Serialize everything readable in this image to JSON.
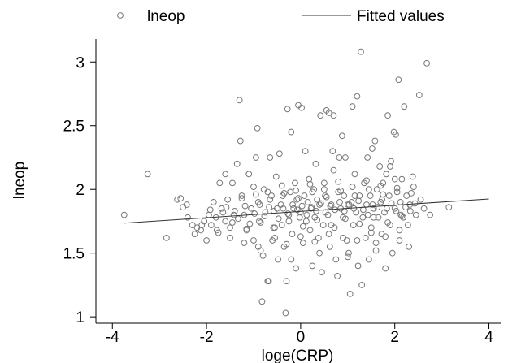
{
  "chart_data": {
    "type": "scatter",
    "xlabel": "loge(CRP)",
    "ylabel": "lneop",
    "xlim": [
      -4.35,
      4.25
    ],
    "ylim": [
      0.95,
      3.18
    ],
    "xticks": [
      -4,
      -2,
      0,
      2,
      4
    ],
    "xtick_labels": [
      "-4",
      "-2",
      "0",
      "2",
      "4"
    ],
    "yticks": [
      1,
      1.5,
      2,
      2.5,
      3
    ],
    "ytick_labels": [
      "1",
      "1.5",
      "2",
      "2.5",
      "3"
    ],
    "grid": false,
    "legend_position": "top",
    "legend": [
      "lneop",
      "Fitted values"
    ],
    "series": [
      {
        "name": "lneop",
        "kind": "scatter",
        "marker": "hollow-circle",
        "color": "#777777",
        "points": [
          [
            -3.75,
            1.8
          ],
          [
            -3.25,
            2.12
          ],
          [
            -2.85,
            1.62
          ],
          [
            -2.55,
            1.93
          ],
          [
            -2.5,
            1.86
          ],
          [
            -2.42,
            1.88
          ],
          [
            -2.4,
            1.78
          ],
          [
            -2.3,
            1.72
          ],
          [
            -2.25,
            1.65
          ],
          [
            -2.12,
            1.68
          ],
          [
            -2.05,
            1.75
          ],
          [
            -2.0,
            1.6
          ],
          [
            -1.95,
            1.8
          ],
          [
            -1.9,
            1.72
          ],
          [
            -1.85,
            1.9
          ],
          [
            -1.78,
            1.68
          ],
          [
            -1.72,
            2.05
          ],
          [
            -1.68,
            1.85
          ],
          [
            -1.6,
            1.75
          ],
          [
            -1.55,
            1.92
          ],
          [
            -1.5,
            1.7
          ],
          [
            -1.45,
            2.05
          ],
          [
            -1.42,
            1.8
          ],
          [
            -1.35,
            2.2
          ],
          [
            -1.3,
            2.7
          ],
          [
            -1.28,
            2.38
          ],
          [
            -1.25,
            1.95
          ],
          [
            -1.2,
            1.8
          ],
          [
            -1.15,
            1.68
          ],
          [
            -1.1,
            2.12
          ],
          [
            -1.05,
            1.85
          ],
          [
            -1.0,
            1.6
          ],
          [
            -0.95,
            2.25
          ],
          [
            -0.92,
            2.48
          ],
          [
            -0.9,
            1.9
          ],
          [
            -0.88,
            1.75
          ],
          [
            -0.85,
            1.52
          ],
          [
            -0.82,
            1.12
          ],
          [
            -0.78,
            2.0
          ],
          [
            -0.75,
            1.82
          ],
          [
            -0.7,
            1.28
          ],
          [
            -0.68,
            1.28
          ],
          [
            -0.65,
            2.25
          ],
          [
            -0.62,
            1.95
          ],
          [
            -0.58,
            1.7
          ],
          [
            -0.55,
            1.62
          ],
          [
            -0.52,
            2.1
          ],
          [
            -0.5,
            1.85
          ],
          [
            -0.48,
            1.45
          ],
          [
            -0.45,
            2.28
          ],
          [
            -0.42,
            1.88
          ],
          [
            -0.4,
            1.72
          ],
          [
            -0.38,
            1.95
          ],
          [
            -0.35,
            1.55
          ],
          [
            -0.32,
            1.03
          ],
          [
            -0.3,
            1.28
          ],
          [
            -0.28,
            2.63
          ],
          [
            -0.25,
            1.8
          ],
          [
            -0.22,
            1.98
          ],
          [
            -0.2,
            2.45
          ],
          [
            -0.18,
            1.65
          ],
          [
            -0.15,
            1.85
          ],
          [
            -0.12,
            2.05
          ],
          [
            -0.1,
            1.38
          ],
          [
            -0.08,
            1.92
          ],
          [
            -0.05,
            2.66
          ],
          [
            -0.02,
            1.78
          ],
          [
            0.0,
            1.82
          ],
          [
            0.02,
            2.64
          ],
          [
            0.05,
            1.58
          ],
          [
            0.08,
            1.95
          ],
          [
            0.1,
            2.3
          ],
          [
            0.12,
            1.75
          ],
          [
            0.15,
            1.9
          ],
          [
            0.18,
            2.08
          ],
          [
            0.2,
            1.68
          ],
          [
            0.22,
            1.85
          ],
          [
            0.25,
            1.4
          ],
          [
            0.28,
            2.0
          ],
          [
            0.3,
            1.78
          ],
          [
            0.32,
            2.2
          ],
          [
            0.35,
            1.92
          ],
          [
            0.38,
            1.62
          ],
          [
            0.4,
            1.88
          ],
          [
            0.42,
            2.58
          ],
          [
            0.45,
            1.35
          ],
          [
            0.48,
            1.72
          ],
          [
            0.5,
            2.05
          ],
          [
            0.52,
            1.95
          ],
          [
            0.55,
            2.62
          ],
          [
            0.58,
            1.8
          ],
          [
            0.6,
            2.6
          ],
          [
            0.62,
            1.55
          ],
          [
            0.65,
            1.88
          ],
          [
            0.68,
            2.3
          ],
          [
            0.7,
            2.58
          ],
          [
            0.72,
            1.7
          ],
          [
            0.75,
            1.45
          ],
          [
            0.78,
            1.32
          ],
          [
            0.8,
            1.98
          ],
          [
            0.82,
            2.25
          ],
          [
            0.85,
            1.85
          ],
          [
            0.88,
            2.42
          ],
          [
            0.9,
            1.78
          ],
          [
            0.92,
            1.95
          ],
          [
            0.95,
            2.25
          ],
          [
            0.98,
            1.6
          ],
          [
            1.0,
            1.88
          ],
          [
            1.02,
            1.5
          ],
          [
            1.05,
            1.18
          ],
          [
            1.08,
            1.9
          ],
          [
            1.1,
            2.65
          ],
          [
            1.12,
            1.72
          ],
          [
            1.15,
            2.12
          ],
          [
            1.18,
            1.82
          ],
          [
            1.2,
            2.73
          ],
          [
            1.22,
            1.4
          ],
          [
            1.25,
            1.95
          ],
          [
            1.28,
            3.08
          ],
          [
            1.3,
            1.25
          ],
          [
            1.32,
            1.78
          ],
          [
            1.35,
            2.05
          ],
          [
            1.38,
            1.62
          ],
          [
            1.4,
            1.88
          ],
          [
            1.42,
            2.25
          ],
          [
            1.45,
            1.45
          ],
          [
            1.48,
            1.95
          ],
          [
            1.5,
            1.7
          ],
          [
            1.52,
            2.32
          ],
          [
            1.55,
            1.85
          ],
          [
            1.58,
            2.38
          ],
          [
            1.6,
            1.58
          ],
          [
            1.62,
            2.0
          ],
          [
            1.65,
            1.78
          ],
          [
            1.68,
            2.18
          ],
          [
            1.7,
            1.9
          ],
          [
            1.72,
            1.65
          ],
          [
            1.75,
            2.05
          ],
          [
            1.78,
            1.82
          ],
          [
            1.8,
            1.38
          ],
          [
            1.82,
            2.12
          ],
          [
            1.85,
            2.58
          ],
          [
            1.88,
            1.95
          ],
          [
            1.9,
            1.72
          ],
          [
            1.92,
            2.22
          ],
          [
            1.95,
            1.5
          ],
          [
            1.98,
            2.45
          ],
          [
            2.0,
            1.85
          ],
          [
            2.02,
            2.43
          ],
          [
            2.05,
            1.98
          ],
          [
            2.08,
            2.86
          ],
          [
            2.1,
            1.68
          ],
          [
            2.12,
            1.9
          ],
          [
            2.15,
            2.08
          ],
          [
            2.18,
            1.78
          ],
          [
            2.2,
            2.65
          ],
          [
            2.25,
            1.95
          ],
          [
            2.28,
            1.72
          ],
          [
            2.32,
            1.88
          ],
          [
            2.38,
            2.1
          ],
          [
            2.45,
            1.8
          ],
          [
            2.52,
            2.74
          ],
          [
            2.55,
            1.92
          ],
          [
            2.62,
            1.85
          ],
          [
            2.68,
            2.99
          ],
          [
            2.75,
            1.8
          ],
          [
            3.15,
            1.86
          ],
          [
            -2.62,
            1.92
          ],
          [
            -2.2,
            1.7
          ],
          [
            -1.92,
            1.84
          ],
          [
            -1.8,
            1.78
          ],
          [
            -1.65,
            1.82
          ],
          [
            -1.58,
            1.86
          ],
          [
            -1.4,
            1.83
          ],
          [
            -1.33,
            1.77
          ],
          [
            -1.18,
            1.87
          ],
          [
            -1.08,
            1.73
          ],
          [
            -0.98,
            1.81
          ],
          [
            -0.87,
            1.88
          ],
          [
            -0.77,
            1.79
          ],
          [
            -0.67,
            1.86
          ],
          [
            -0.57,
            1.83
          ],
          [
            -0.47,
            1.77
          ],
          [
            -0.37,
            1.85
          ],
          [
            -0.27,
            1.81
          ],
          [
            -0.17,
            1.88
          ],
          [
            -0.07,
            1.84
          ],
          [
            0.03,
            1.87
          ],
          [
            0.13,
            1.8
          ],
          [
            0.23,
            1.86
          ],
          [
            0.33,
            1.83
          ],
          [
            0.43,
            1.89
          ],
          [
            0.53,
            1.82
          ],
          [
            0.63,
            1.87
          ],
          [
            0.73,
            1.84
          ],
          [
            0.83,
            1.9
          ],
          [
            0.93,
            1.83
          ],
          [
            1.03,
            1.88
          ],
          [
            1.13,
            1.85
          ],
          [
            1.23,
            1.91
          ],
          [
            1.33,
            1.84
          ],
          [
            1.43,
            1.8
          ],
          [
            1.53,
            1.88
          ],
          [
            1.63,
            1.86
          ],
          [
            1.73,
            1.92
          ],
          [
            1.83,
            1.85
          ],
          [
            1.93,
            1.89
          ],
          [
            2.03,
            1.83
          ],
          [
            2.13,
            1.8
          ],
          [
            2.23,
            1.86
          ],
          [
            2.33,
            1.83
          ],
          [
            2.43,
            1.89
          ],
          [
            -1.5,
            1.62
          ],
          [
            -1.2,
            1.58
          ],
          [
            -0.9,
            1.55
          ],
          [
            -0.6,
            1.6
          ],
          [
            -0.3,
            1.57
          ],
          [
            0.0,
            1.63
          ],
          [
            0.3,
            1.59
          ],
          [
            0.6,
            1.65
          ],
          [
            0.9,
            1.62
          ],
          [
            1.2,
            1.6
          ],
          [
            1.5,
            1.66
          ],
          [
            1.8,
            1.63
          ],
          [
            2.1,
            1.6
          ],
          [
            -1.0,
            2.02
          ],
          [
            -0.7,
            1.98
          ],
          [
            -0.4,
            2.03
          ],
          [
            -0.1,
            1.99
          ],
          [
            0.2,
            2.04
          ],
          [
            0.5,
            2.0
          ],
          [
            0.8,
            2.06
          ],
          [
            1.1,
            2.02
          ],
          [
            1.4,
            2.07
          ],
          [
            1.7,
            2.03
          ],
          [
            2.0,
            2.08
          ],
          [
            -2.1,
            1.72
          ],
          [
            -1.75,
            1.66
          ],
          [
            -1.45,
            1.74
          ],
          [
            -1.15,
            1.69
          ],
          [
            -0.85,
            1.74
          ],
          [
            -0.55,
            1.7
          ],
          [
            -0.25,
            1.75
          ],
          [
            0.05,
            1.71
          ],
          [
            0.35,
            1.76
          ],
          [
            0.65,
            1.72
          ],
          [
            0.95,
            1.77
          ],
          [
            1.25,
            1.73
          ],
          [
            1.55,
            1.78
          ],
          [
            1.85,
            1.74
          ],
          [
            2.15,
            1.79
          ],
          [
            -1.25,
            1.93
          ],
          [
            -0.95,
            1.96
          ],
          [
            -0.65,
            1.92
          ],
          [
            -0.35,
            1.97
          ],
          [
            -0.05,
            1.93
          ],
          [
            0.25,
            1.98
          ],
          [
            0.55,
            1.94
          ],
          [
            0.85,
            1.99
          ],
          [
            1.15,
            1.95
          ],
          [
            1.45,
            2.0
          ],
          [
            1.75,
            1.96
          ],
          [
            2.05,
            2.01
          ],
          [
            2.35,
            1.97
          ],
          [
            -0.8,
            1.48
          ],
          [
            -0.2,
            1.45
          ],
          [
            0.4,
            1.5
          ],
          [
            1.0,
            1.47
          ],
          [
            1.6,
            1.52
          ],
          [
            2.3,
            1.55
          ],
          [
            -1.6,
            2.12
          ],
          [
            0.7,
            2.15
          ],
          [
            1.9,
            2.18
          ],
          [
            2.4,
            2.02
          ]
        ]
      },
      {
        "name": "Fitted values",
        "kind": "line",
        "color": "#333333",
        "points": [
          [
            -3.75,
            1.735
          ],
          [
            4.0,
            1.925
          ]
        ]
      }
    ]
  }
}
